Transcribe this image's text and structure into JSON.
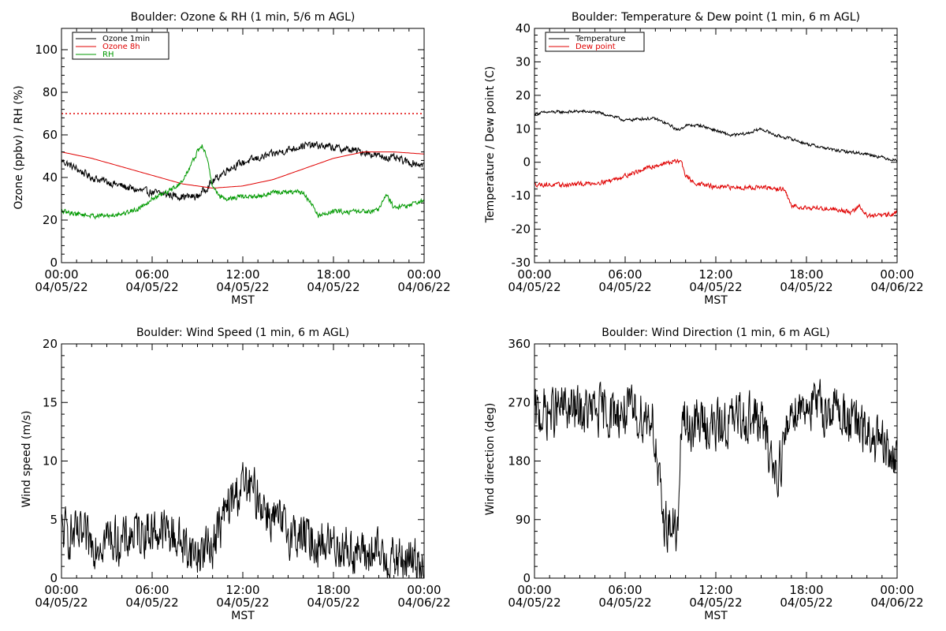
{
  "chart_data": [
    {
      "id": "ozone",
      "type": "line",
      "title": "Boulder: Ozone & RH (1 min, 5/6 m AGL)",
      "xlabel": "MST",
      "ylabel": "Ozone (ppbv) / RH (%)",
      "ylim": [
        0,
        110
      ],
      "yticks": [
        0,
        20,
        40,
        60,
        80,
        100
      ],
      "x_ticks": [
        {
          "time": "00:00",
          "date": "04/05/22"
        },
        {
          "time": "06:00",
          "date": "04/05/22"
        },
        {
          "time": "12:00",
          "date": "04/05/22"
        },
        {
          "time": "18:00",
          "date": "04/05/22"
        },
        {
          "time": "00:00",
          "date": "04/06/22"
        }
      ],
      "x_unit": "hours since 04/05/22 00:00 MST",
      "x_range": [
        0,
        24
      ],
      "reference_line": {
        "y": 70,
        "color": "#e00000",
        "style": "dotted"
      },
      "legend": {
        "placement": "top-left",
        "entries": [
          {
            "label": "Ozone 1min",
            "color": "#000000"
          },
          {
            "label": "Ozone 8h",
            "color": "#e00000"
          },
          {
            "label": "RH",
            "color": "#009900"
          }
        ]
      },
      "series": [
        {
          "name": "Ozone 1min",
          "color": "#000000",
          "noise": 1.6,
          "x": [
            0,
            1,
            2,
            3,
            4,
            5,
            6,
            7,
            8,
            9,
            10,
            11,
            12,
            13,
            14,
            15,
            16,
            17,
            18,
            19,
            20,
            21,
            22,
            23,
            24
          ],
          "y": [
            48,
            44,
            40,
            38,
            36,
            34,
            33,
            32,
            31,
            31,
            38,
            44,
            47,
            49,
            51,
            53,
            55,
            55,
            54,
            53,
            52,
            50,
            49,
            47,
            46
          ]
        },
        {
          "name": "Ozone 8h",
          "color": "#e00000",
          "noise": 0,
          "x": [
            0,
            2,
            4,
            6,
            8,
            10,
            12,
            14,
            16,
            18,
            20,
            22,
            24
          ],
          "y": [
            52,
            49,
            45,
            41,
            37,
            35,
            36,
            39,
            44,
            49,
            52,
            52,
            51
          ]
        },
        {
          "name": "RH",
          "color": "#009900",
          "noise": 1.0,
          "x": [
            0,
            1,
            2,
            3,
            4,
            5,
            6,
            7,
            8,
            8.5,
            9,
            9.3,
            9.6,
            10,
            10.5,
            11,
            12,
            13,
            14,
            15,
            16,
            16.5,
            17,
            18,
            19,
            20,
            21,
            21.5,
            22,
            23,
            24
          ],
          "y": [
            24,
            23,
            22,
            22,
            23,
            25,
            30,
            33,
            38,
            45,
            52,
            55,
            50,
            36,
            31,
            30,
            31,
            31,
            33,
            33,
            33,
            28,
            22,
            24,
            24,
            24,
            25,
            32,
            26,
            27,
            29
          ]
        }
      ]
    },
    {
      "id": "temperature",
      "type": "line",
      "title": "Boulder: Temperature & Dew point (1 min, 6 m AGL)",
      "xlabel": "MST",
      "ylabel": "Temperature / Dew point (C)",
      "ylim": [
        -30,
        40
      ],
      "yticks": [
        -30,
        -20,
        -10,
        0,
        10,
        20,
        30,
        40
      ],
      "x_ticks": [
        {
          "time": "00:00",
          "date": "04/05/22"
        },
        {
          "time": "06:00",
          "date": "04/05/22"
        },
        {
          "time": "12:00",
          "date": "04/05/22"
        },
        {
          "time": "18:00",
          "date": "04/05/22"
        },
        {
          "time": "00:00",
          "date": "04/06/22"
        }
      ],
      "x_unit": "hours since 04/05/22 00:00 MST",
      "x_range": [
        0,
        24
      ],
      "legend": {
        "placement": "top-left",
        "entries": [
          {
            "label": "Temperature",
            "color": "#000000"
          },
          {
            "label": "Dew point",
            "color": "#e00000"
          }
        ]
      },
      "series": [
        {
          "name": "Temperature",
          "color": "#000000",
          "noise": 0.4,
          "x": [
            0,
            1,
            2,
            3,
            4,
            5,
            6,
            7,
            8,
            9,
            9.5,
            10,
            11,
            12,
            13,
            14,
            15,
            16,
            17,
            18,
            19,
            20,
            21,
            22,
            23,
            24
          ],
          "y": [
            14.5,
            15,
            15,
            15.2,
            15,
            14,
            12.5,
            13,
            13,
            11,
            9.5,
            11,
            11,
            9.5,
            8,
            8.5,
            10,
            8,
            7,
            5.5,
            4.5,
            3.5,
            3,
            2.5,
            1.5,
            0.5
          ]
        },
        {
          "name": "Dew point",
          "color": "#e00000",
          "noise": 0.6,
          "x": [
            0,
            1,
            2,
            3,
            4,
            5,
            6,
            7,
            8,
            9,
            9.7,
            10,
            10.5,
            11,
            12,
            13,
            14,
            15,
            16,
            16.5,
            17,
            18,
            19,
            20,
            21,
            21.5,
            22,
            23,
            24
          ],
          "y": [
            -6.5,
            -6.8,
            -6.8,
            -6.5,
            -6.2,
            -5.5,
            -4,
            -2.5,
            -1,
            0,
            0.5,
            -4,
            -6,
            -6.5,
            -7.5,
            -7.5,
            -7.5,
            -7.5,
            -8,
            -8,
            -13,
            -13.5,
            -13.8,
            -14,
            -15,
            -13,
            -16,
            -16,
            -15
          ]
        }
      ]
    },
    {
      "id": "wind-speed",
      "type": "line",
      "title": "Boulder: Wind Speed (1 min, 6 m AGL)",
      "xlabel": "MST",
      "ylabel": "Wind speed (m/s)",
      "ylim": [
        0,
        20
      ],
      "yticks": [
        0,
        5,
        10,
        15,
        20
      ],
      "x_ticks": [
        {
          "time": "00:00",
          "date": "04/05/22"
        },
        {
          "time": "06:00",
          "date": "04/05/22"
        },
        {
          "time": "12:00",
          "date": "04/05/22"
        },
        {
          "time": "18:00",
          "date": "04/05/22"
        },
        {
          "time": "00:00",
          "date": "04/06/22"
        }
      ],
      "x_unit": "hours since 04/05/22 00:00 MST",
      "x_range": [
        0,
        24
      ],
      "series": [
        {
          "name": "",
          "color": "#000000",
          "noise": 1.8,
          "floor": 0,
          "x": [
            0,
            1,
            2,
            3,
            4,
            5,
            6,
            7,
            8,
            9,
            10,
            11,
            12,
            13,
            14,
            15,
            16,
            17,
            18,
            19,
            20,
            21,
            22,
            23,
            24
          ],
          "y": [
            4,
            3.5,
            3,
            3.5,
            3,
            4,
            4,
            4,
            3,
            2,
            3,
            6,
            8,
            7,
            5,
            4,
            3.5,
            3,
            3,
            2.5,
            2,
            2,
            1.5,
            1.5,
            1.5
          ]
        }
      ]
    },
    {
      "id": "wind-direction",
      "type": "line",
      "title": "Boulder: Wind Direction (1 min, 6 m AGL)",
      "xlabel": "MST",
      "ylabel": "Wind direction (deg)",
      "ylim": [
        0,
        360
      ],
      "yticks": [
        0,
        90,
        180,
        270,
        360
      ],
      "x_ticks": [
        {
          "time": "00:00",
          "date": "04/05/22"
        },
        {
          "time": "06:00",
          "date": "04/05/22"
        },
        {
          "time": "12:00",
          "date": "04/05/22"
        },
        {
          "time": "18:00",
          "date": "04/05/22"
        },
        {
          "time": "00:00",
          "date": "04/06/22"
        }
      ],
      "x_unit": "hours since 04/05/22 00:00 MST",
      "x_range": [
        0,
        24
      ],
      "series": [
        {
          "name": "",
          "color": "#000000",
          "noise": 35,
          "floor": 0,
          "ceil": 360,
          "x": [
            0,
            1,
            2,
            3,
            4,
            5,
            6,
            7,
            7.8,
            8.2,
            8.5,
            9,
            9.5,
            9.8,
            10,
            11,
            12,
            13,
            14,
            15,
            15.5,
            16,
            16.5,
            17,
            18,
            19,
            20,
            21,
            22,
            23,
            24
          ],
          "y": [
            250,
            255,
            260,
            255,
            255,
            255,
            255,
            250,
            250,
            150,
            90,
            80,
            70,
            270,
            230,
            240,
            230,
            240,
            250,
            240,
            200,
            160,
            200,
            260,
            270,
            260,
            260,
            240,
            220,
            200,
            180
          ]
        }
      ]
    }
  ]
}
